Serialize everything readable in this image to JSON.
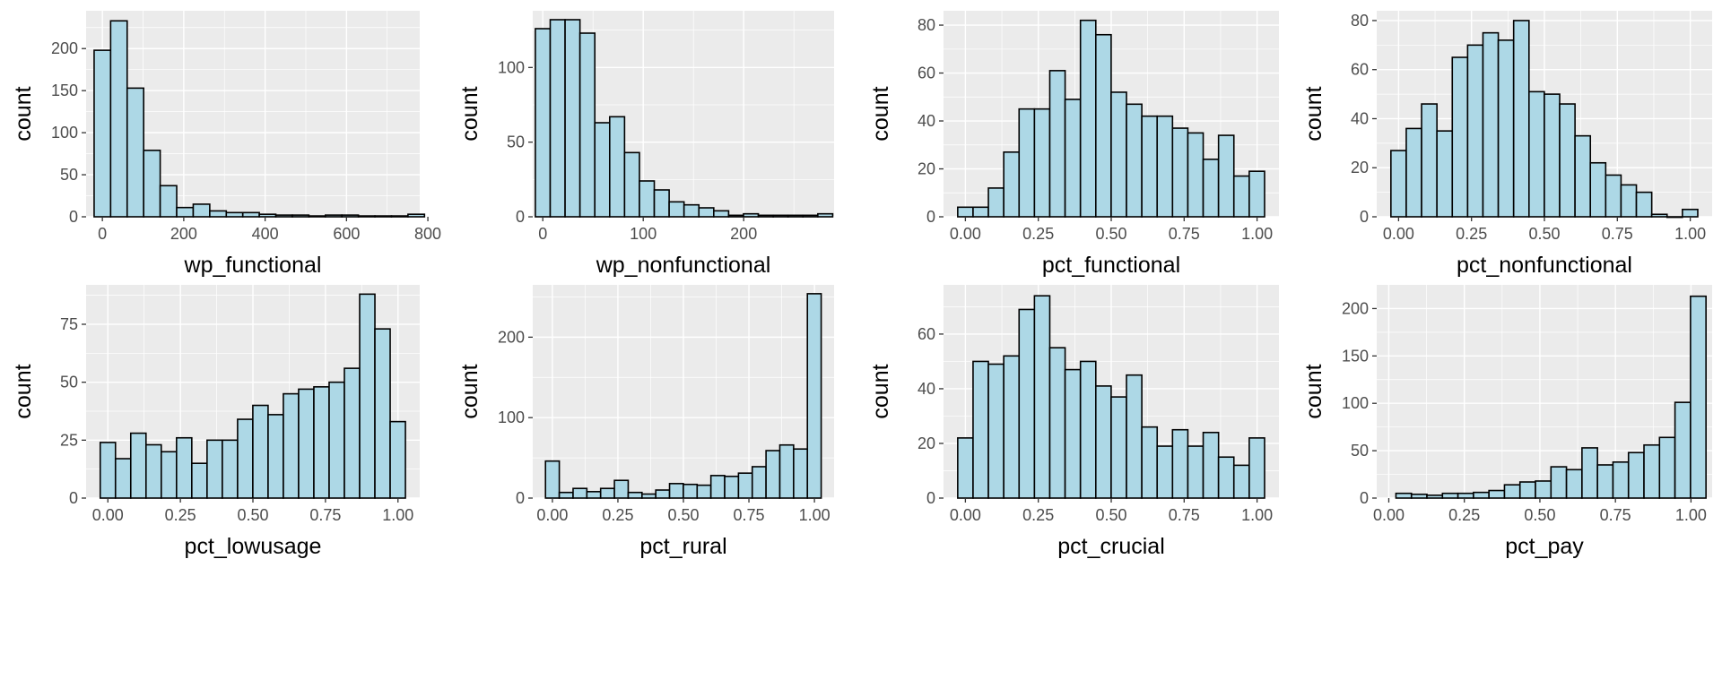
{
  "chart_data": [
    {
      "type": "bar",
      "xlabel": "wp_functional",
      "ylabel": "count",
      "xlim": [
        -40,
        780
      ],
      "ylim": [
        0,
        245
      ],
      "x_ticks": [
        0,
        200,
        400,
        600,
        800
      ],
      "x_tick_labels": [
        "0",
        "200",
        "400",
        "600",
        "800"
      ],
      "y_ticks": [
        0,
        50,
        100,
        150,
        200
      ],
      "y_tick_labels": [
        "0",
        "50",
        "100",
        "150",
        "200"
      ],
      "bin_start": -20.3,
      "bin_width": 40.6,
      "values": [
        198,
        233,
        153,
        79,
        37,
        11,
        15,
        7,
        5,
        5,
        3,
        2,
        2,
        1,
        2,
        2,
        1,
        1,
        1,
        3
      ],
      "grid": true
    },
    {
      "type": "bar",
      "xlabel": "wp_nonfunctional",
      "ylabel": "count",
      "xlim": [
        -10,
        290
      ],
      "ylim": [
        0,
        138
      ],
      "x_ticks": [
        0,
        100,
        200
      ],
      "x_tick_labels": [
        "0",
        "100",
        "200"
      ],
      "y_ticks": [
        0,
        50,
        100
      ],
      "y_tick_labels": [
        "0",
        "50",
        "100"
      ],
      "bin_start": -7.4,
      "bin_width": 14.8,
      "values": [
        126,
        132,
        132,
        123,
        63,
        67,
        43,
        24,
        18,
        10,
        8,
        6,
        4,
        1,
        2,
        1,
        1,
        1,
        1,
        2
      ],
      "grid": true
    },
    {
      "type": "bar",
      "xlabel": "pct_functional",
      "ylabel": "count",
      "xlim": [
        -0.075,
        1.075
      ],
      "ylim": [
        0,
        86
      ],
      "x_ticks": [
        0,
        0.25,
        0.5,
        0.75,
        1
      ],
      "x_tick_labels": [
        "0.00",
        "0.25",
        "0.50",
        "0.75",
        "1.00"
      ],
      "y_ticks": [
        0,
        20,
        40,
        60,
        80
      ],
      "y_tick_labels": [
        "0",
        "20",
        "40",
        "60",
        "80"
      ],
      "bin_start": -0.0263,
      "bin_width": 0.0526,
      "values": [
        4,
        4,
        12,
        27,
        45,
        45,
        61,
        49,
        82,
        76,
        52,
        47,
        42,
        42,
        37,
        35,
        24,
        34,
        17,
        19
      ],
      "grid": true
    },
    {
      "type": "bar",
      "xlabel": "pct_nonfunctional",
      "ylabel": "count",
      "xlim": [
        -0.075,
        1.075
      ],
      "ylim": [
        0,
        84
      ],
      "x_ticks": [
        0,
        0.25,
        0.5,
        0.75,
        1
      ],
      "x_tick_labels": [
        "0.00",
        "0.25",
        "0.50",
        "0.75",
        "1.00"
      ],
      "y_ticks": [
        0,
        20,
        40,
        60,
        80
      ],
      "y_tick_labels": [
        "0",
        "20",
        "40",
        "60",
        "80"
      ],
      "bin_start": -0.0263,
      "bin_width": 0.0526,
      "values": [
        27,
        36,
        46,
        35,
        65,
        70,
        75,
        72,
        80,
        51,
        50,
        46,
        33,
        22,
        17,
        13,
        10,
        1,
        0,
        3
      ],
      "grid": true
    },
    {
      "type": "bar",
      "xlabel": "pct_lowusage",
      "ylabel": "count",
      "xlim": [
        -0.075,
        1.075
      ],
      "ylim": [
        0,
        92
      ],
      "x_ticks": [
        0,
        0.25,
        0.5,
        0.75,
        1
      ],
      "x_tick_labels": [
        "0.00",
        "0.25",
        "0.50",
        "0.75",
        "1.00"
      ],
      "y_ticks": [
        0,
        25,
        50,
        75
      ],
      "y_tick_labels": [
        "0",
        "25",
        "50",
        "75"
      ],
      "bin_start": -0.0263,
      "bin_width": 0.0526,
      "values": [
        24,
        17,
        28,
        23,
        20,
        26,
        15,
        25,
        25,
        34,
        40,
        36,
        45,
        47,
        48,
        50,
        56,
        88,
        73,
        33
      ],
      "grid": true
    },
    {
      "type": "bar",
      "xlabel": "pct_rural",
      "ylabel": "count",
      "xlim": [
        -0.075,
        1.075
      ],
      "ylim": [
        0,
        265
      ],
      "x_ticks": [
        0,
        0.25,
        0.5,
        0.75,
        1
      ],
      "x_tick_labels": [
        "0.00",
        "0.25",
        "0.50",
        "0.75",
        "1.00"
      ],
      "y_ticks": [
        0,
        100,
        200
      ],
      "y_tick_labels": [
        "0",
        "100",
        "200"
      ],
      "bin_start": -0.0263,
      "bin_width": 0.0526,
      "values": [
        46,
        7,
        12,
        8,
        12,
        22,
        7,
        5,
        10,
        18,
        17,
        16,
        28,
        27,
        31,
        39,
        59,
        66,
        61,
        254
      ],
      "grid": true
    },
    {
      "type": "bar",
      "xlabel": "pct_crucial",
      "ylabel": "count",
      "xlim": [
        -0.075,
        1.075
      ],
      "ylim": [
        0,
        78
      ],
      "x_ticks": [
        0,
        0.25,
        0.5,
        0.75,
        1
      ],
      "x_tick_labels": [
        "0.00",
        "0.25",
        "0.50",
        "0.75",
        "1.00"
      ],
      "y_ticks": [
        0,
        20,
        40,
        60
      ],
      "y_tick_labels": [
        "0",
        "20",
        "40",
        "60"
      ],
      "bin_start": -0.0263,
      "bin_width": 0.0526,
      "values": [
        22,
        50,
        49,
        52,
        69,
        74,
        55,
        47,
        50,
        41,
        37,
        45,
        26,
        19,
        25,
        19,
        24,
        15,
        12,
        22
      ],
      "grid": true
    },
    {
      "type": "bar",
      "xlabel": "pct_pay",
      "ylabel": "count",
      "xlim": [
        -0.04,
        1.07
      ],
      "ylim": [
        0,
        225
      ],
      "x_ticks": [
        0,
        0.25,
        0.5,
        0.75,
        1
      ],
      "x_tick_labels": [
        "0.00",
        "0.25",
        "0.50",
        "0.75",
        "1.00"
      ],
      "y_ticks": [
        0,
        50,
        100,
        150,
        200
      ],
      "y_tick_labels": [
        "0",
        "50",
        "100",
        "150",
        "200"
      ],
      "bin_start": 0.0237,
      "bin_width": 0.0513,
      "values": [
        5,
        4,
        3,
        5,
        5,
        6,
        8,
        14,
        17,
        18,
        33,
        30,
        53,
        35,
        38,
        48,
        56,
        64,
        101,
        213
      ],
      "grid": true
    }
  ],
  "colors": {
    "panel_background": "#EBEBEB",
    "grid": "#FFFFFF",
    "bar_fill": "#ADD8E6",
    "bar_stroke": "#000000",
    "tick_label": "#4D4D4D",
    "axis_title": "#000000"
  }
}
